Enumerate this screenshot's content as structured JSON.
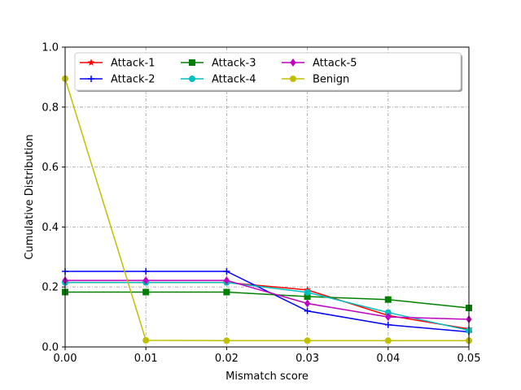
{
  "chart_data": {
    "type": "line",
    "xlabel": "Mismatch score",
    "ylabel": "Cumulative Distribution",
    "xlim": [
      0,
      0.05
    ],
    "ylim": [
      0,
      1.0
    ],
    "x_ticks": [
      0.0,
      0.01,
      0.02,
      0.03,
      0.04,
      0.05
    ],
    "x_tick_labels": [
      "0.00",
      "0.01",
      "0.02",
      "0.03",
      "0.04",
      "0.05"
    ],
    "y_ticks": [
      0.0,
      0.2,
      0.4,
      0.6,
      0.8,
      1.0
    ],
    "y_tick_labels": [
      "0.0",
      "0.2",
      "0.4",
      "0.6",
      "0.8",
      "1.0"
    ],
    "grid": true,
    "legend_position": "top",
    "x": [
      0.0,
      0.01,
      0.02,
      0.03,
      0.04,
      0.05
    ],
    "series": [
      {
        "name": "Attack-1",
        "color": "#ff0000",
        "marker": "star",
        "values": [
          0.215,
          0.215,
          0.215,
          0.19,
          0.105,
          0.06
        ]
      },
      {
        "name": "Attack-2",
        "color": "#0000ff",
        "marker": "plus",
        "values": [
          0.252,
          0.252,
          0.252,
          0.12,
          0.074,
          0.05
        ]
      },
      {
        "name": "Attack-3",
        "color": "#008000",
        "marker": "square",
        "values": [
          0.183,
          0.183,
          0.183,
          0.168,
          0.158,
          0.13
        ]
      },
      {
        "name": "Attack-4",
        "color": "#00bfbf",
        "marker": "circle",
        "values": [
          0.215,
          0.215,
          0.215,
          0.182,
          0.115,
          0.055
        ]
      },
      {
        "name": "Attack-5",
        "color": "#bf00bf",
        "marker": "diamond",
        "values": [
          0.222,
          0.222,
          0.222,
          0.145,
          0.1,
          0.092
        ]
      },
      {
        "name": "Benign",
        "color": "#bfbf00",
        "marker": "circle",
        "values": [
          0.895,
          0.022,
          0.021,
          0.021,
          0.021,
          0.021
        ]
      }
    ]
  }
}
